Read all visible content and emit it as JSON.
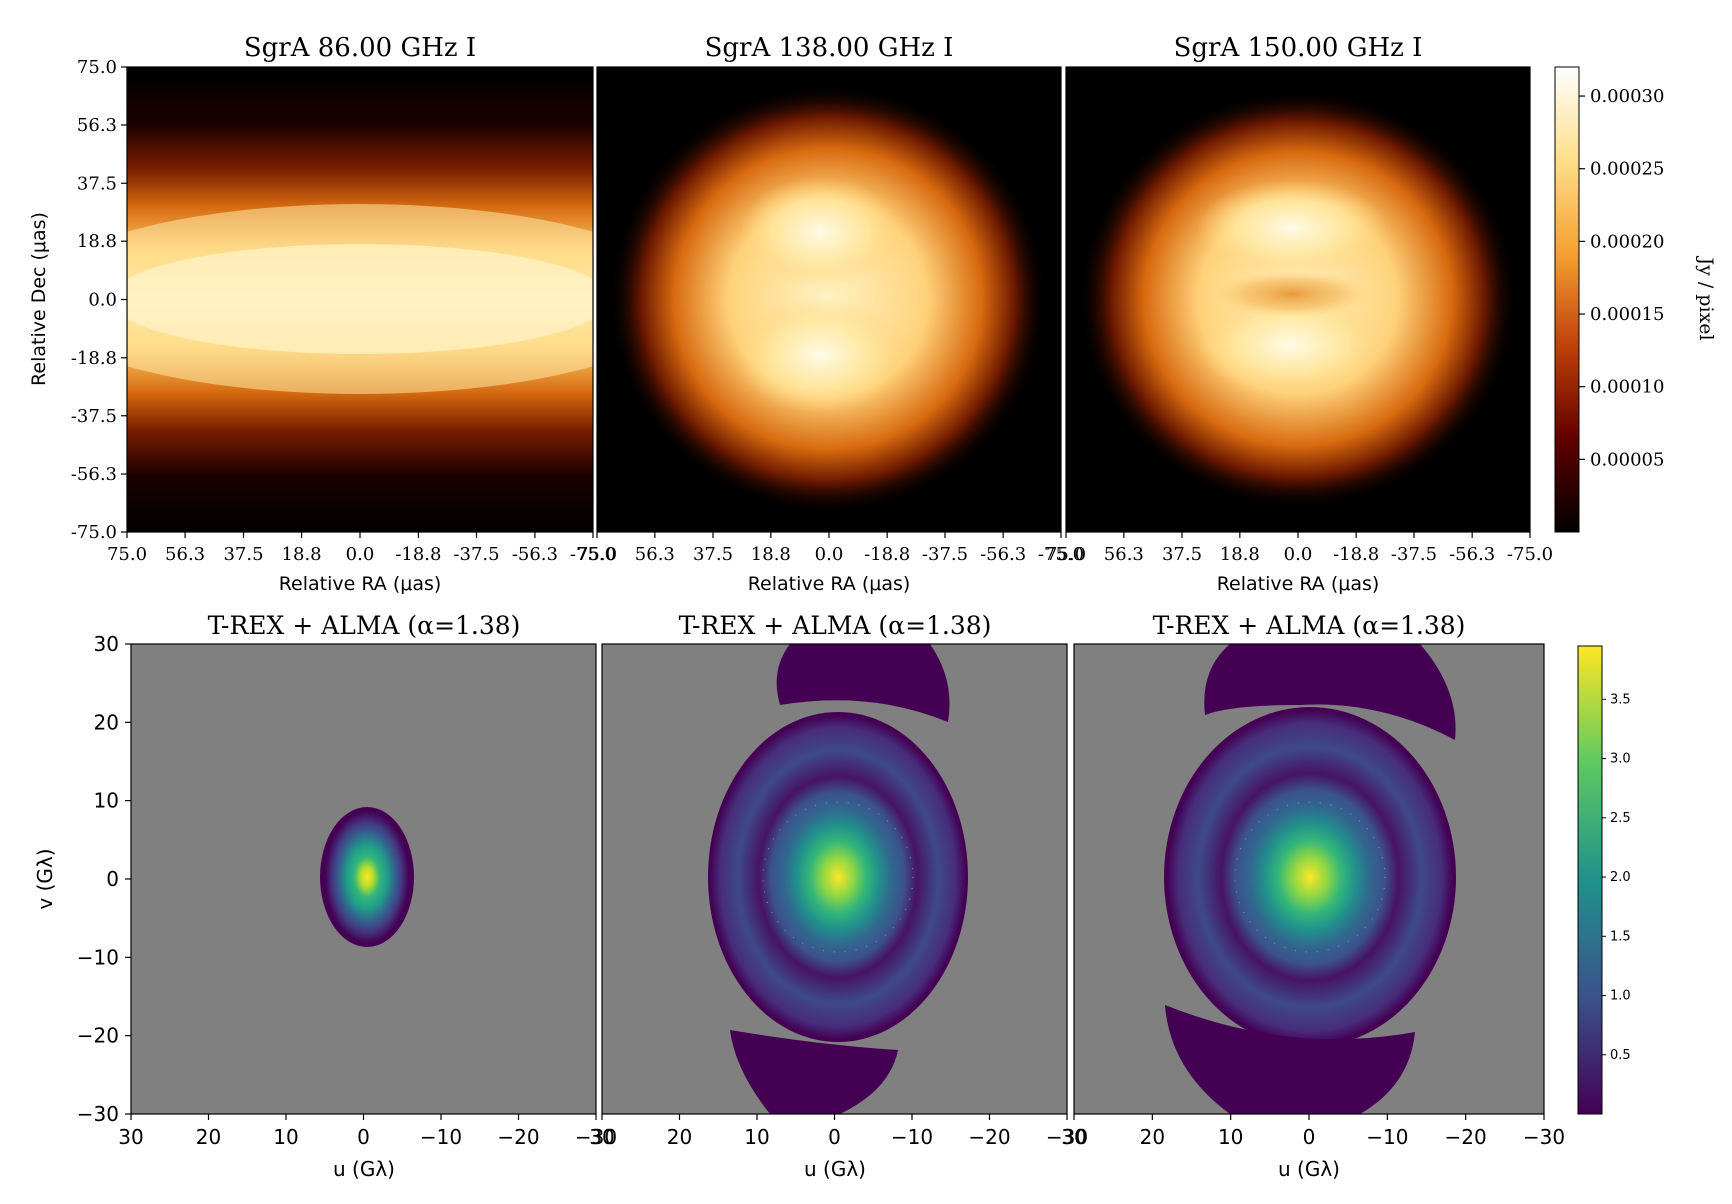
{
  "chart_data": [
    {
      "type": "heatmap",
      "title": "SgrA 86.00 GHz I",
      "xlabel": "Relative RA (μas)",
      "ylabel": "Relative Dec (μas)",
      "xlim": [
        75.0,
        -75.0
      ],
      "ylim": [
        -75.0,
        75.0
      ],
      "xticks": [
        "75.0",
        "56.3",
        "37.5",
        "18.8",
        "0.0",
        "-18.8",
        "-37.5",
        "-56.3",
        "-75.0"
      ],
      "yticks": [
        "75.0",
        "56.3",
        "37.5",
        "18.8",
        "0.0",
        "-18.8",
        "-37.5",
        "-56.3",
        "-75.0"
      ],
      "colormap": "afmhot",
      "colorbar_label": "Jy / pixel",
      "colorbar_range": [
        0.0,
        0.00032
      ],
      "colorbar_ticks": [
        "0.00005",
        "0.00010",
        "0.00015",
        "0.00020",
        "0.00025",
        "0.00030"
      ],
      "structure": "horizontally elongated bright blob centred at origin, peak ≈0.00030"
    },
    {
      "type": "heatmap",
      "title": "SgrA 138.00 GHz I",
      "xlabel": "Relative RA (μas)",
      "xlim": [
        75.0,
        -75.0
      ],
      "ylim": [
        -75.0,
        75.0
      ],
      "colormap": "afmhot",
      "structure": "ring-like source with two bright lobes at ±18.8 μas Dec"
    },
    {
      "type": "heatmap",
      "title": "SgrA 150.00 GHz I",
      "xlabel": "Relative RA (μas)",
      "xlim": [
        75.0,
        -75.0
      ],
      "ylim": [
        -75.0,
        75.0
      ],
      "colormap": "afmhot",
      "structure": "ring with central depression, bright upper and lower crescents"
    },
    {
      "type": "heatmap",
      "title": "T-REX + ALMA (α=1.38)",
      "xlabel": "u (Gλ)",
      "ylabel": "v (Gλ)",
      "xlim": [
        30,
        -30
      ],
      "ylim": [
        -30,
        30
      ],
      "xticks": [
        "30",
        "20",
        "10",
        "0",
        "−10",
        "−20",
        "−30"
      ],
      "yticks": [
        "−30",
        "−20",
        "−10",
        "0",
        "10",
        "20",
        "30"
      ],
      "colormap": "viridis",
      "colorbar_range": [
        0.0,
        3.95
      ],
      "colorbar_ticks": [
        "0.5",
        "1.0",
        "1.5",
        "2.0",
        "2.5",
        "3.0",
        "3.5"
      ],
      "structure": "small elliptical coverage region |u|≲6, |v|≲9 Gλ, peak ≈3.9 at origin"
    },
    {
      "type": "heatmap",
      "title": "T-REX + ALMA (α=1.38)",
      "xlabel": "u (Gλ)",
      "xlim": [
        30,
        -30
      ],
      "ylim": [
        -30,
        30
      ],
      "colormap": "viridis",
      "structure": "large elliptical coverage |u|≲16, |v|≲21 Gλ plus crescents near v=±25"
    },
    {
      "type": "heatmap",
      "title": "T-REX + ALMA (α=1.38)",
      "xlabel": "u (Gλ)",
      "xlim": [
        30,
        -30
      ],
      "ylim": [
        -30,
        30
      ],
      "colormap": "viridis",
      "structure": "large elliptical coverage |u|≲18, |v|≲22 Gλ plus crescents near v=±26"
    }
  ]
}
